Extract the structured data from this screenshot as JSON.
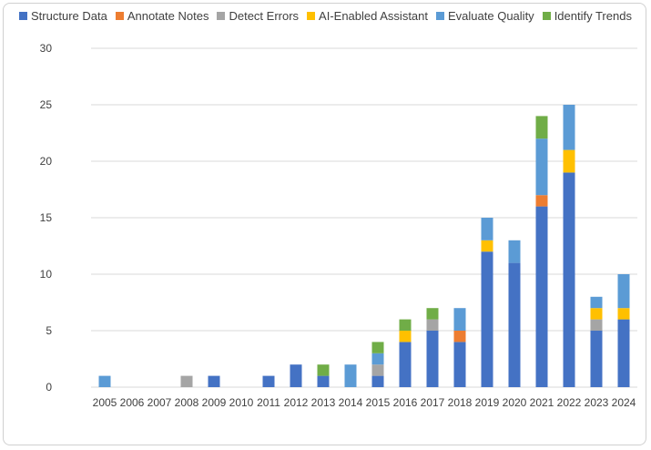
{
  "chart_data": {
    "type": "bar",
    "stacked": true,
    "title": "",
    "xlabel": "",
    "ylabel": "",
    "ylim": [
      0,
      30
    ],
    "yticks": [
      0,
      5,
      10,
      15,
      20,
      25,
      30
    ],
    "grid": true,
    "legend_position": "top",
    "categories": [
      "2005",
      "2006",
      "2007",
      "2008",
      "2009",
      "2010",
      "2011",
      "2012",
      "2013",
      "2014",
      "2015",
      "2016",
      "2017",
      "2018",
      "2019",
      "2020",
      "2021",
      "2022",
      "2023",
      "2024"
    ],
    "series": [
      {
        "name": "Structure Data",
        "color": "#4472C4",
        "values": [
          0,
          0,
          0,
          0,
          1,
          0,
          1,
          2,
          1,
          0,
          1,
          4,
          5,
          4,
          12,
          11,
          16,
          19,
          5,
          6
        ]
      },
      {
        "name": "Annotate Notes",
        "color": "#ED7D31",
        "values": [
          0,
          0,
          0,
          0,
          0,
          0,
          0,
          0,
          0,
          0,
          0,
          0,
          0,
          1,
          0,
          0,
          1,
          0,
          0,
          0
        ]
      },
      {
        "name": "Detect Errors",
        "color": "#A5A5A5",
        "values": [
          0,
          0,
          0,
          1,
          0,
          0,
          0,
          0,
          0,
          0,
          1,
          0,
          1,
          0,
          0,
          0,
          0,
          0,
          1,
          0
        ]
      },
      {
        "name": "AI-Enabled Assistant",
        "color": "#FFC000",
        "values": [
          0,
          0,
          0,
          0,
          0,
          0,
          0,
          0,
          0,
          0,
          0,
          1,
          0,
          0,
          1,
          0,
          0,
          2,
          1,
          1
        ]
      },
      {
        "name": "Evaluate Quality",
        "color": "#5B9BD5",
        "values": [
          1,
          0,
          0,
          0,
          0,
          0,
          0,
          0,
          0,
          2,
          1,
          0,
          0,
          2,
          2,
          2,
          5,
          4,
          1,
          3
        ]
      },
      {
        "name": "Identify Trends",
        "color": "#70AD47",
        "values": [
          0,
          0,
          0,
          0,
          0,
          0,
          0,
          0,
          1,
          0,
          1,
          1,
          1,
          0,
          0,
          0,
          2,
          0,
          0,
          0
        ]
      }
    ]
  }
}
